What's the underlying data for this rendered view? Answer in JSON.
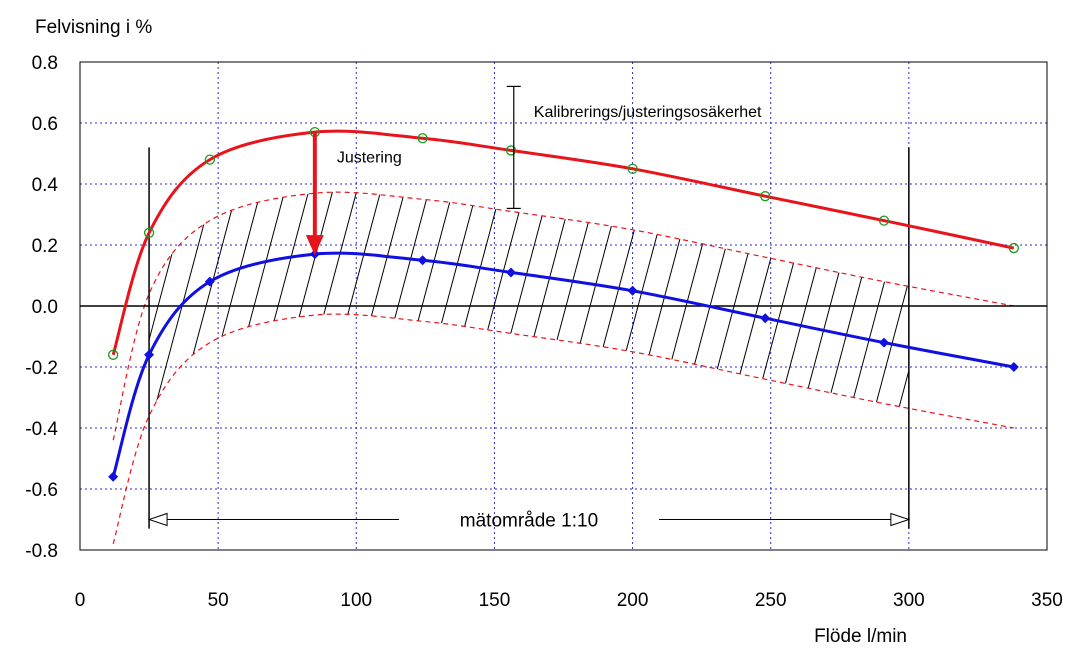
{
  "chart_data": {
    "type": "line",
    "title": "",
    "ylabel": "Felvisning i %",
    "xlabel": "Flöde l/min",
    "xlim": [
      0,
      350
    ],
    "ylim": [
      -0.8,
      0.8
    ],
    "x_ticks": [
      0,
      50,
      100,
      150,
      200,
      250,
      300,
      350
    ],
    "y_ticks": [
      0.8,
      0.6,
      0.4,
      0.2,
      0.0,
      -0.2,
      -0.4,
      -0.6,
      -0.8
    ],
    "x_tick_labels": [
      "0",
      "50",
      "100",
      "150",
      "200",
      "250",
      "300",
      "350"
    ],
    "y_tick_labels": [
      "0.8",
      "0.6",
      "0.4",
      "0.2",
      "0.0",
      "-0.2",
      "-0.4",
      "-0.6",
      "-0.8"
    ],
    "grid": true,
    "series": [
      {
        "color": "#e8141b",
        "marker": "circle",
        "x": [
          12,
          25,
          47,
          85,
          124,
          156,
          200,
          248,
          291,
          338
        ],
        "y": [
          -0.16,
          0.24,
          0.48,
          0.57,
          0.55,
          0.51,
          0.45,
          0.36,
          0.28,
          0.19
        ]
      },
      {
        "color": "#1010e0",
        "marker": "diamond",
        "x": [
          12,
          25,
          47,
          85,
          124,
          156,
          200,
          248,
          291,
          338
        ],
        "y": [
          -0.56,
          -0.16,
          0.08,
          0.17,
          0.15,
          0.11,
          0.05,
          -0.04,
          -0.12,
          -0.2
        ]
      }
    ],
    "uncertainty_band": {
      "color": "#e8141b",
      "x": [
        12,
        25,
        47,
        85,
        124,
        156,
        200,
        248,
        291,
        338
      ],
      "upper": [
        -0.44,
        0.04,
        0.28,
        0.37,
        0.35,
        0.31,
        0.25,
        0.16,
        0.08,
        0.0
      ],
      "lower": [
        -0.78,
        -0.36,
        -0.12,
        -0.03,
        -0.05,
        -0.09,
        -0.15,
        -0.24,
        -0.32,
        -0.4
      ]
    },
    "measuring_range": {
      "x_start": 25,
      "x_end": 300,
      "label": "mätområde 1:10",
      "y": -0.7
    },
    "annotations": {
      "adjustment": {
        "label": "Justering",
        "x": 85,
        "y_from": 0.57,
        "y_to": 0.17
      },
      "uncertainty": {
        "label": "Kalibrerings/justeringsosäkerhet",
        "x": 157,
        "y_from": 0.32,
        "y_to": 0.72
      }
    }
  }
}
